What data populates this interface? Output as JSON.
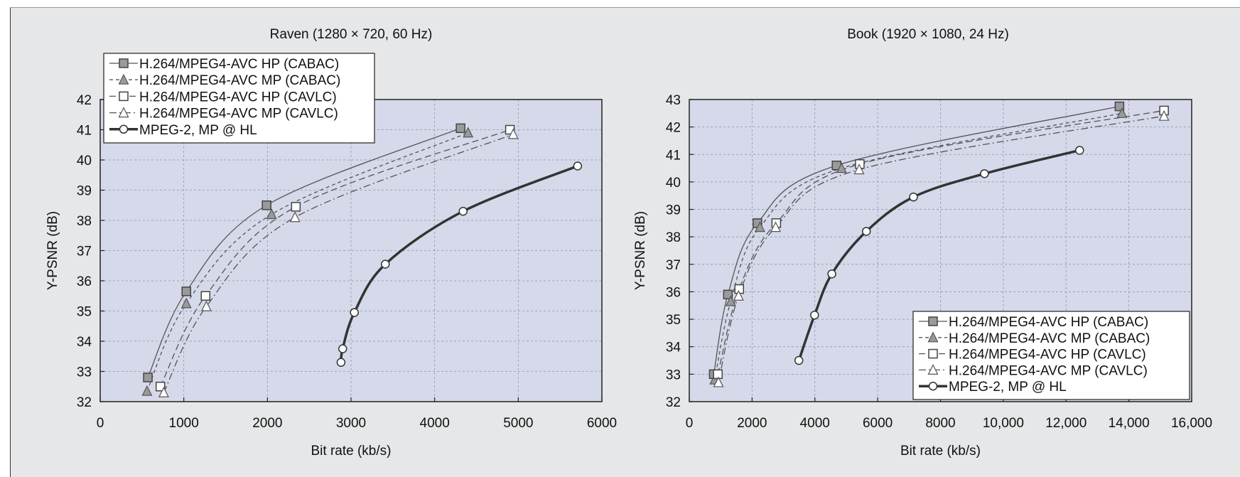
{
  "chart_data": [
    {
      "type": "line",
      "title": "Raven (1280 × 720, 60 Hz)",
      "xlabel": "Bit rate (kb/s)",
      "ylabel": "Y-PSNR (dB)",
      "xlim": [
        0,
        6000
      ],
      "ylim": [
        32,
        42
      ],
      "xticks": [
        0,
        1000,
        2000,
        3000,
        4000,
        5000,
        6000
      ],
      "xtick_labels": [
        "0",
        "1000",
        "2000",
        "3000",
        "4000",
        "5000",
        "6000"
      ],
      "yticks": [
        32,
        33,
        34,
        35,
        36,
        37,
        38,
        39,
        40,
        41,
        42
      ],
      "ytick_labels": [
        "32",
        "33",
        "34",
        "35",
        "36",
        "37",
        "38",
        "39",
        "40",
        "41",
        "42"
      ],
      "grid": true,
      "legend_position": "top-left",
      "series": [
        {
          "name": "H.264/MPEG4-AVC HP (CABAC)",
          "marker": "square-filled",
          "dash": "solid",
          "color": "#555555",
          "x": [
            570,
            1030,
            1990,
            4310
          ],
          "y": [
            32.8,
            35.65,
            38.5,
            41.05
          ]
        },
        {
          "name": "H.264/MPEG4-AVC MP (CABAC)",
          "marker": "triangle-filled",
          "dash": "short-dash",
          "color": "#555555",
          "x": [
            560,
            1030,
            2050,
            4400
          ],
          "y": [
            32.35,
            35.25,
            38.2,
            40.9
          ]
        },
        {
          "name": "H.264/MPEG4-AVC HP (CAVLC)",
          "marker": "square-open",
          "dash": "long-dash",
          "color": "#555555",
          "x": [
            720,
            1260,
            2340,
            4900
          ],
          "y": [
            32.5,
            35.5,
            38.45,
            41.0
          ]
        },
        {
          "name": "H.264/MPEG4-AVC MP (CAVLC)",
          "marker": "triangle-open",
          "dash": "dash-dot",
          "color": "#555555",
          "x": [
            760,
            1270,
            2330,
            4940
          ],
          "y": [
            32.3,
            35.15,
            38.1,
            40.85
          ]
        },
        {
          "name": "MPEG-2, MP @ HL",
          "marker": "circle-open",
          "dash": "solid-thick",
          "color": "#333333",
          "x": [
            2880,
            2900,
            3040,
            3410,
            4340,
            5710
          ],
          "y": [
            33.3,
            33.75,
            34.95,
            36.55,
            38.3,
            39.8
          ]
        }
      ]
    },
    {
      "type": "line",
      "title": "Book (1920 × 1080, 24 Hz)",
      "xlabel": "Bit rate (kb/s)",
      "ylabel": "Y-PSNR (dB)",
      "xlim": [
        0,
        16000
      ],
      "ylim": [
        32,
        43
      ],
      "xticks": [
        0,
        2000,
        4000,
        6000,
        8000,
        10000,
        12000,
        14000,
        16000
      ],
      "xtick_labels": [
        "0",
        "2000",
        "4000",
        "6000",
        "8000",
        "10,000",
        "12,000",
        "14,000",
        "16,000"
      ],
      "yticks": [
        32,
        33,
        34,
        35,
        36,
        37,
        38,
        39,
        40,
        41,
        42,
        43
      ],
      "ytick_labels": [
        "32",
        "33",
        "34",
        "35",
        "36",
        "37",
        "38",
        "39",
        "40",
        "41",
        "42",
        "43"
      ],
      "grid": true,
      "legend_position": "bottom-right",
      "series": [
        {
          "name": "H.264/MPEG4-AVC HP (CABAC)",
          "marker": "square-filled",
          "dash": "solid",
          "color": "#555555",
          "x": [
            780,
            1230,
            2170,
            4690,
            13700
          ],
          "y": [
            33.0,
            35.9,
            38.5,
            40.6,
            42.75
          ]
        },
        {
          "name": "H.264/MPEG4-AVC MP (CABAC)",
          "marker": "triangle-filled",
          "dash": "short-dash",
          "color": "#555555",
          "x": [
            810,
            1320,
            2250,
            4850,
            13780
          ],
          "y": [
            32.8,
            35.65,
            38.35,
            40.5,
            42.5
          ]
        },
        {
          "name": "H.264/MPEG4-AVC HP (CAVLC)",
          "marker": "square-open",
          "dash": "long-dash",
          "color": "#555555",
          "x": [
            910,
            1590,
            2770,
            5430,
            15120
          ],
          "y": [
            33.0,
            36.1,
            38.5,
            40.65,
            42.6
          ]
        },
        {
          "name": "H.264/MPEG4-AVC MP (CAVLC)",
          "marker": "triangle-open",
          "dash": "dash-dot",
          "color": "#555555",
          "x": [
            930,
            1570,
            2750,
            5410,
            15120
          ],
          "y": [
            32.7,
            35.85,
            38.35,
            40.45,
            42.4
          ]
        },
        {
          "name": "MPEG-2, MP @ HL",
          "marker": "circle-open",
          "dash": "solid-thick",
          "color": "#333333",
          "x": [
            3490,
            3990,
            4540,
            5640,
            7140,
            9400,
            12430
          ],
          "y": [
            33.5,
            35.15,
            36.65,
            38.2,
            39.45,
            40.3,
            41.15
          ]
        }
      ]
    }
  ]
}
